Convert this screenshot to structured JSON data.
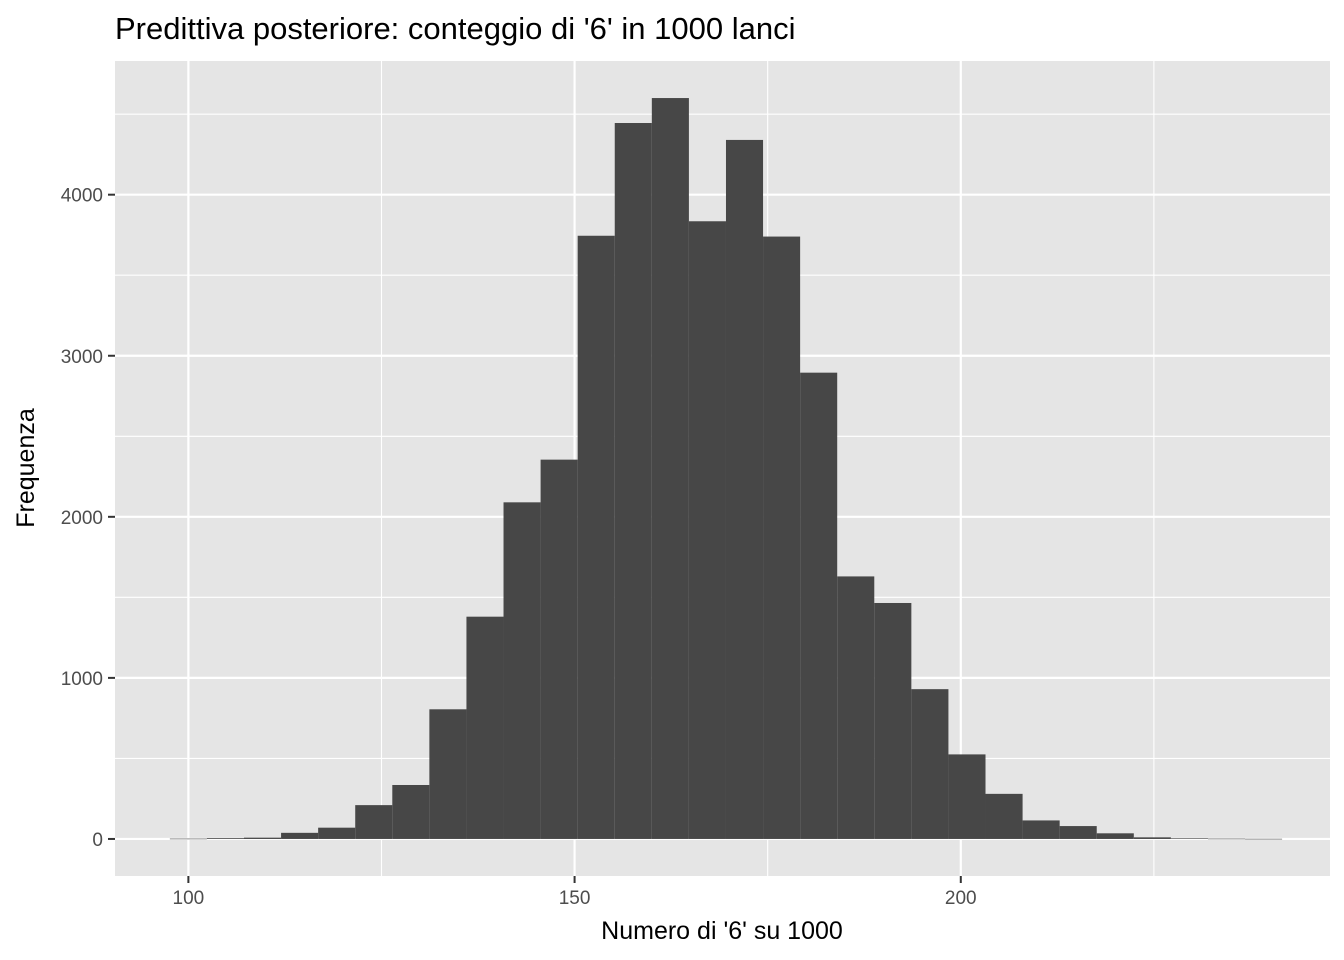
{
  "chart_data": {
    "type": "bar",
    "title": "Predittiva posteriore: conteggio di '6' in 1000 lanci",
    "xlabel": "Numero di '6' su 1000",
    "ylabel": "Frequenza",
    "xlim": [
      90.5,
      247.8
    ],
    "ylim": [
      -230,
      4830
    ],
    "x_ticks": [
      100,
      150,
      200
    ],
    "x_tick_labels": [
      "100",
      "150",
      "200"
    ],
    "y_ticks": [
      0,
      1000,
      2000,
      3000,
      4000
    ],
    "y_tick_labels": [
      "0",
      "1000",
      "2000",
      "3000",
      "4000"
    ],
    "bin_edges": [
      97.6,
      102.4,
      107.2,
      112.0,
      116.8,
      121.6,
      126.4,
      131.2,
      136.0,
      140.8,
      145.6,
      150.4,
      155.2,
      160.0,
      164.8,
      169.6,
      174.4,
      179.2,
      184.0,
      188.8,
      193.6,
      198.4,
      203.2,
      208.0,
      212.8,
      217.6,
      222.4,
      227.2,
      232.0,
      236.8,
      241.6
    ],
    "values": [
      2,
      5,
      8,
      38,
      70,
      210,
      335,
      805,
      1380,
      2090,
      2355,
      3745,
      4445,
      4600,
      3835,
      4340,
      3740,
      2895,
      1630,
      1465,
      930,
      525,
      280,
      115,
      80,
      35,
      10,
      4,
      2,
      1
    ],
    "grid": true,
    "legend": "none",
    "colors": {
      "bar": "#474747",
      "panel": "#e5e5e5",
      "grid": "#ffffff"
    }
  }
}
